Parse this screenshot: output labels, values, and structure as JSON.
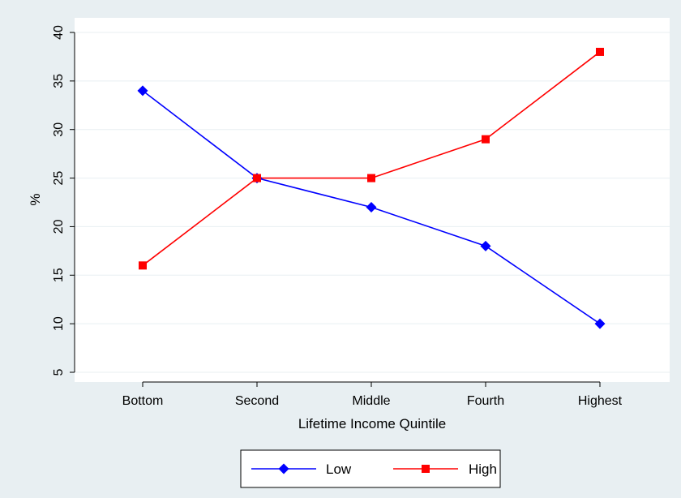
{
  "chart_data": {
    "type": "line",
    "title": "",
    "xlabel": "Lifetime Income Quintile",
    "ylabel": "%",
    "categories": [
      "Bottom",
      "Second",
      "Middle",
      "Fourth",
      "Highest"
    ],
    "ylim": [
      5,
      40
    ],
    "yticks": [
      5,
      10,
      15,
      20,
      25,
      30,
      35,
      40
    ],
    "grid": true,
    "legend_position": "bottom",
    "series": [
      {
        "name": "Low",
        "values": [
          34,
          25,
          22,
          18,
          10
        ],
        "color": "#0000ff",
        "marker": "diamond"
      },
      {
        "name": "High",
        "values": [
          16,
          25,
          25,
          29,
          38
        ],
        "color": "#ff0000",
        "marker": "square"
      }
    ]
  },
  "colors": {
    "background": "#e8eff2",
    "plot_area": "#ffffff",
    "grid": "#e8eff2"
  }
}
